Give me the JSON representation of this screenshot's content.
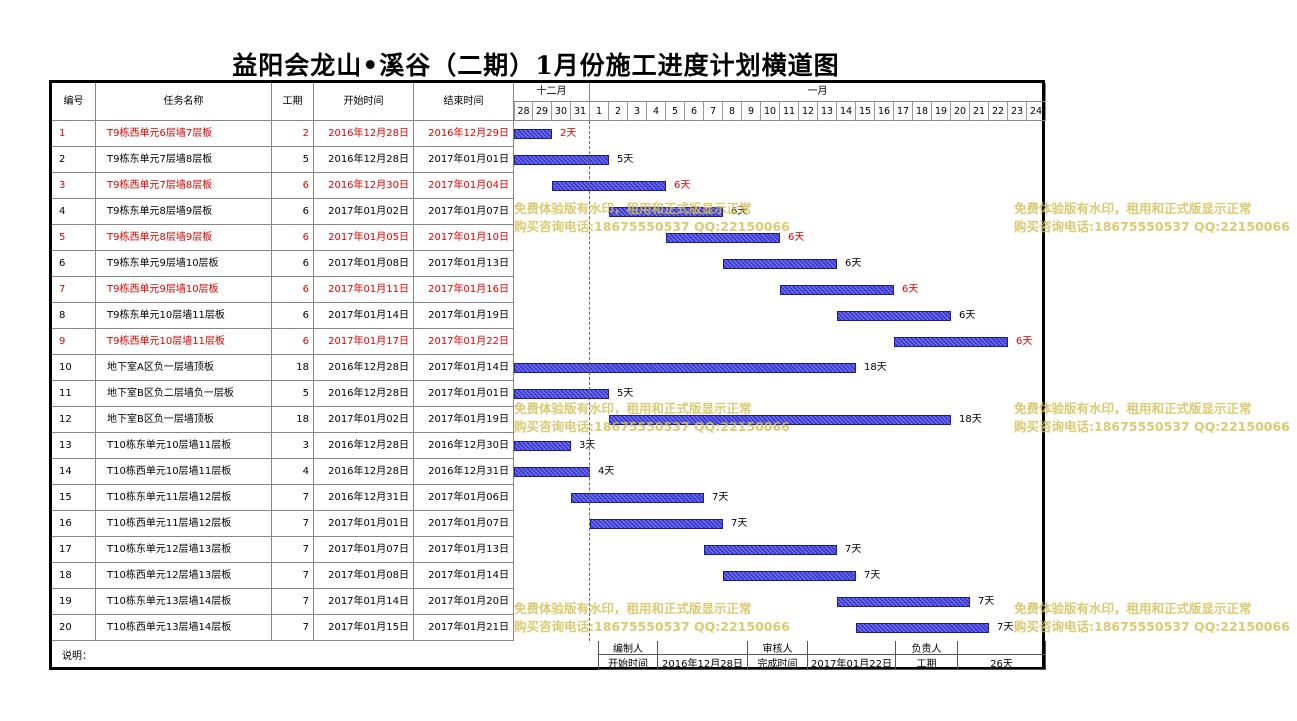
{
  "title": "益阳会龙山•溪谷（二期）1月份施工进度计划横道图",
  "headers": {
    "id": "编号",
    "name": "任务名称",
    "days": "工期",
    "start": "开始时间",
    "end": "结束时间"
  },
  "months": {
    "dec": "十二月",
    "jan": "一月"
  },
  "day_labels": [
    "28",
    "29",
    "30",
    "31",
    "1",
    "2",
    "3",
    "4",
    "5",
    "6",
    "7",
    "8",
    "9",
    "10",
    "11",
    "12",
    "13",
    "14",
    "15",
    "16",
    "17",
    "18",
    "19",
    "20",
    "21",
    "22",
    "23",
    "24"
  ],
  "tasks": [
    {
      "id": "1",
      "name": "T9栋西单元6层墙7层板",
      "days": "2",
      "start": "2016年12月28日",
      "end": "2016年12月29日",
      "red": true,
      "s": 0,
      "d": 2,
      "dur": "2天"
    },
    {
      "id": "2",
      "name": "T9栋东单元7层墙8层板",
      "days": "5",
      "start": "2016年12月28日",
      "end": "2017年01月01日",
      "red": false,
      "s": 0,
      "d": 5,
      "dur": "5天"
    },
    {
      "id": "3",
      "name": "T9栋西单元7层墙8层板",
      "days": "6",
      "start": "2016年12月30日",
      "end": "2017年01月04日",
      "red": true,
      "s": 2,
      "d": 6,
      "dur": "6天"
    },
    {
      "id": "4",
      "name": "T9栋东单元8层墙9层板",
      "days": "6",
      "start": "2017年01月02日",
      "end": "2017年01月07日",
      "red": false,
      "s": 5,
      "d": 6,
      "dur": "6天"
    },
    {
      "id": "5",
      "name": "T9栋西单元8层墙9层板",
      "days": "6",
      "start": "2017年01月05日",
      "end": "2017年01月10日",
      "red": true,
      "s": 8,
      "d": 6,
      "dur": "6天"
    },
    {
      "id": "6",
      "name": "T9栋东单元9层墙10层板",
      "days": "6",
      "start": "2017年01月08日",
      "end": "2017年01月13日",
      "red": false,
      "s": 11,
      "d": 6,
      "dur": "6天"
    },
    {
      "id": "7",
      "name": "T9栋西单元9层墙10层板",
      "days": "6",
      "start": "2017年01月11日",
      "end": "2017年01月16日",
      "red": true,
      "s": 14,
      "d": 6,
      "dur": "6天"
    },
    {
      "id": "8",
      "name": "T9栋东单元10层墙11层板",
      "days": "6",
      "start": "2017年01月14日",
      "end": "2017年01月19日",
      "red": false,
      "s": 17,
      "d": 6,
      "dur": "6天"
    },
    {
      "id": "9",
      "name": "T9栋西单元10层墙11层板",
      "days": "6",
      "start": "2017年01月17日",
      "end": "2017年01月22日",
      "red": true,
      "s": 20,
      "d": 6,
      "dur": "6天"
    },
    {
      "id": "10",
      "name": "地下室A区负一层墙顶板",
      "days": "18",
      "start": "2016年12月28日",
      "end": "2017年01月14日",
      "red": false,
      "s": 0,
      "d": 18,
      "dur": "18天"
    },
    {
      "id": "11",
      "name": "地下室B区负二层墙负一层板",
      "days": "5",
      "start": "2016年12月28日",
      "end": "2017年01月01日",
      "red": false,
      "s": 0,
      "d": 5,
      "dur": "5天"
    },
    {
      "id": "12",
      "name": "地下室B区负一层墙顶板",
      "days": "18",
      "start": "2017年01月02日",
      "end": "2017年01月19日",
      "red": false,
      "s": 5,
      "d": 18,
      "dur": "18天"
    },
    {
      "id": "13",
      "name": "T10栋东单元10层墙11层板",
      "days": "3",
      "start": "2016年12月28日",
      "end": "2016年12月30日",
      "red": false,
      "s": 0,
      "d": 3,
      "dur": "3天"
    },
    {
      "id": "14",
      "name": "T10栋西单元10层墙11层板",
      "days": "4",
      "start": "2016年12月28日",
      "end": "2016年12月31日",
      "red": false,
      "s": 0,
      "d": 4,
      "dur": "4天"
    },
    {
      "id": "15",
      "name": "T10栋东单元11层墙12层板",
      "days": "7",
      "start": "2016年12月31日",
      "end": "2017年01月06日",
      "red": false,
      "s": 3,
      "d": 7,
      "dur": "7天"
    },
    {
      "id": "16",
      "name": "T10栋西单元11层墙12层板",
      "days": "7",
      "start": "2017年01月01日",
      "end": "2017年01月07日",
      "red": false,
      "s": 4,
      "d": 7,
      "dur": "7天"
    },
    {
      "id": "17",
      "name": "T10栋东单元12层墙13层板",
      "days": "7",
      "start": "2017年01月07日",
      "end": "2017年01月13日",
      "red": false,
      "s": 10,
      "d": 7,
      "dur": "7天"
    },
    {
      "id": "18",
      "name": "T10栋西单元12层墙13层板",
      "days": "7",
      "start": "2017年01月08日",
      "end": "2017年01月14日",
      "red": false,
      "s": 11,
      "d": 7,
      "dur": "7天"
    },
    {
      "id": "19",
      "name": "T10栋东单元13层墙14层板",
      "days": "7",
      "start": "2017年01月14日",
      "end": "2017年01月20日",
      "red": false,
      "s": 17,
      "d": 7,
      "dur": "7天"
    },
    {
      "id": "20",
      "name": "T10栋西单元13层墙14层板",
      "days": "7",
      "start": "2017年01月15日",
      "end": "2017年01月21日",
      "red": false,
      "s": 18,
      "d": 7,
      "dur": "7天"
    }
  ],
  "footer": {
    "note_label": "说明：",
    "compiler_label": "编制人",
    "reviewer_label": "审核人",
    "responsible_label": "负责人",
    "start_label": "开始时间",
    "start_value": "2016年12月28日",
    "finish_label": "完成时间",
    "finish_value": "2017年01月22日",
    "duration_label": "工期",
    "duration_value": "26天"
  },
  "watermark": {
    "line1": "免费体验版有水印，租用和正式版显示正常",
    "line2": "购买咨询电话:18675550537 QQ:22150066"
  },
  "colors": {
    "bar": "#3b3bd6",
    "highlight_text": "#e00000",
    "watermark": "#d4c15a"
  }
}
